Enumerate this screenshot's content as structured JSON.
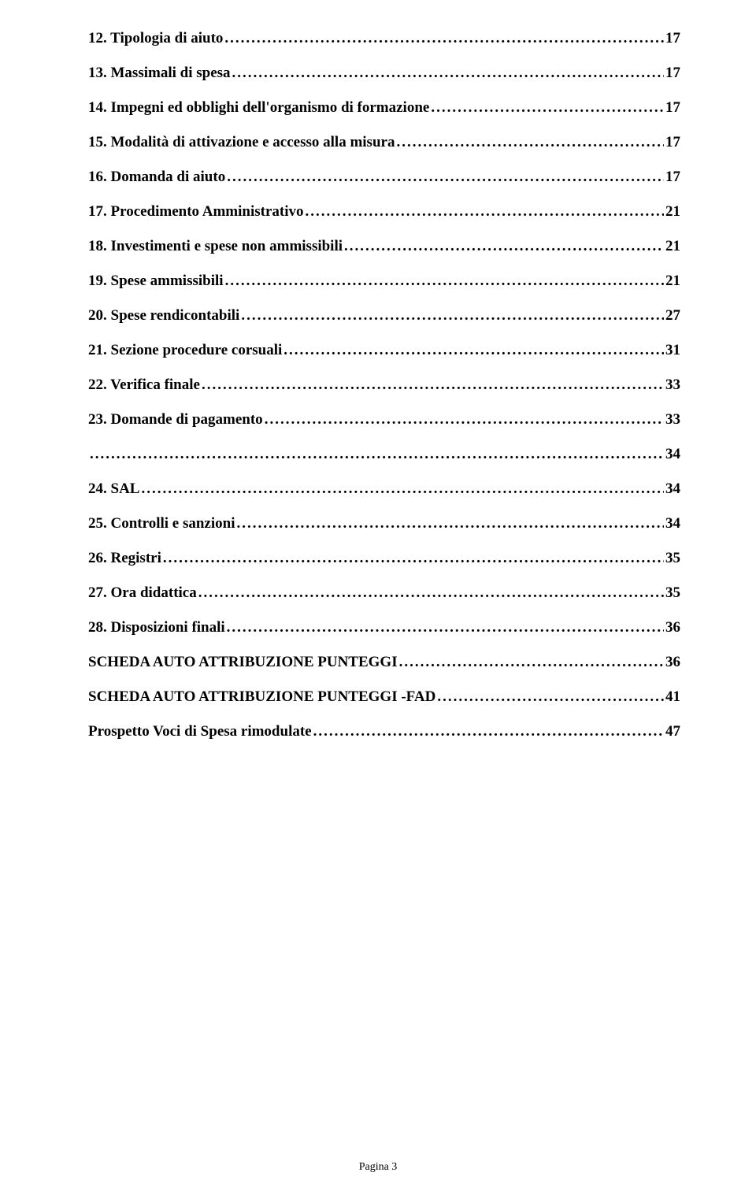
{
  "toc": {
    "entries": [
      {
        "label": "12. Tipologia di aiuto",
        "page": "17"
      },
      {
        "label": "13. Massimali di spesa",
        "page": "17"
      },
      {
        "label": "14. Impegni ed obblighi dell'organismo di formazione",
        "page": "17"
      },
      {
        "label": "15. Modalità di attivazione e accesso alla misura",
        "page": "17"
      },
      {
        "label": "16. Domanda di aiuto",
        "page": "17"
      },
      {
        "label": "17. Procedimento Amministrativo",
        "page": "21"
      },
      {
        "label": "18. Investimenti e spese non ammissibili",
        "page": "21"
      },
      {
        "label": "19. Spese ammissibili",
        "page": "21"
      },
      {
        "label": "20. Spese rendicontabili",
        "page": "27"
      },
      {
        "label": "21. Sezione procedure corsuali",
        "page": "31"
      },
      {
        "label": "22. Verifica finale",
        "page": "33"
      },
      {
        "label": "23. Domande di pagamento",
        "page": "33"
      },
      {
        "label": "",
        "page": "34"
      },
      {
        "label": "24. SAL",
        "page": "34"
      },
      {
        "label": "25. Controlli e sanzioni",
        "page": "34"
      },
      {
        "label": "26. Registri",
        "page": "35"
      },
      {
        "label": "27. Ora didattica",
        "page": "35"
      },
      {
        "label": "28. Disposizioni finali",
        "page": "36"
      },
      {
        "label": "SCHEDA AUTO ATTRIBUZIONE PUNTEGGI",
        "page": "36"
      },
      {
        "label": "SCHEDA AUTO ATTRIBUZIONE PUNTEGGI -FAD",
        "page": "41"
      },
      {
        "label": "Prospetto Voci di Spesa rimodulate",
        "page": "47"
      }
    ],
    "font_size": 19,
    "font_weight": "bold",
    "text_color": "#000000",
    "background_color": "#ffffff"
  },
  "footer": {
    "text": "Pagina 3",
    "font_size": 14
  }
}
